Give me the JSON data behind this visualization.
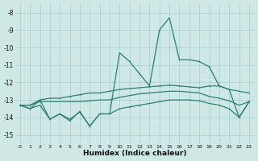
{
  "xlabel": "Humidex (Indice chaleur)",
  "x": [
    0,
    1,
    2,
    3,
    4,
    5,
    6,
    7,
    8,
    9,
    10,
    11,
    12,
    13,
    14,
    15,
    16,
    17,
    18,
    19,
    20,
    21,
    22,
    23
  ],
  "line_top": [
    -13.3,
    -13.5,
    -13.0,
    -14.1,
    -13.8,
    -14.1,
    -13.7,
    -14.5,
    -13.8,
    -13.8,
    -10.3,
    -10.8,
    -11.5,
    -12.2,
    -9.0,
    -8.3,
    -10.7,
    -10.7,
    -10.8,
    -11.1,
    -12.2,
    -12.4,
    -14.0,
    -13.1
  ],
  "line_mid_upper": [
    -13.3,
    -13.3,
    -13.0,
    -12.9,
    -12.9,
    -12.8,
    -12.7,
    -12.6,
    -12.6,
    -12.5,
    -12.4,
    -12.35,
    -12.3,
    -12.25,
    -12.2,
    -12.15,
    -12.2,
    -12.25,
    -12.3,
    -12.2,
    -12.2,
    -12.4,
    -12.5,
    -12.6
  ],
  "line_mid_lower": [
    -13.3,
    -13.3,
    -13.1,
    -13.1,
    -13.1,
    -13.1,
    -13.1,
    -13.05,
    -13.0,
    -13.0,
    -12.85,
    -12.75,
    -12.65,
    -12.6,
    -12.55,
    -12.5,
    -12.5,
    -12.55,
    -12.6,
    -12.8,
    -12.9,
    -13.05,
    -13.3,
    -13.1
  ],
  "line_bottom": [
    -13.3,
    -13.5,
    -13.3,
    -14.1,
    -13.8,
    -14.2,
    -13.65,
    -14.5,
    -13.8,
    -13.8,
    -13.5,
    -13.4,
    -13.3,
    -13.2,
    -13.1,
    -13.0,
    -13.0,
    -13.0,
    -13.05,
    -13.2,
    -13.3,
    -13.5,
    -14.0,
    -13.1
  ],
  "line_color": "#2d7f72",
  "bg_color": "#cde8e5",
  "grid_color": "#a8ccc9",
  "ylim": [
    -15.5,
    -7.5
  ],
  "yticks": [
    -8,
    -9,
    -10,
    -11,
    -12,
    -13,
    -14,
    -15
  ]
}
